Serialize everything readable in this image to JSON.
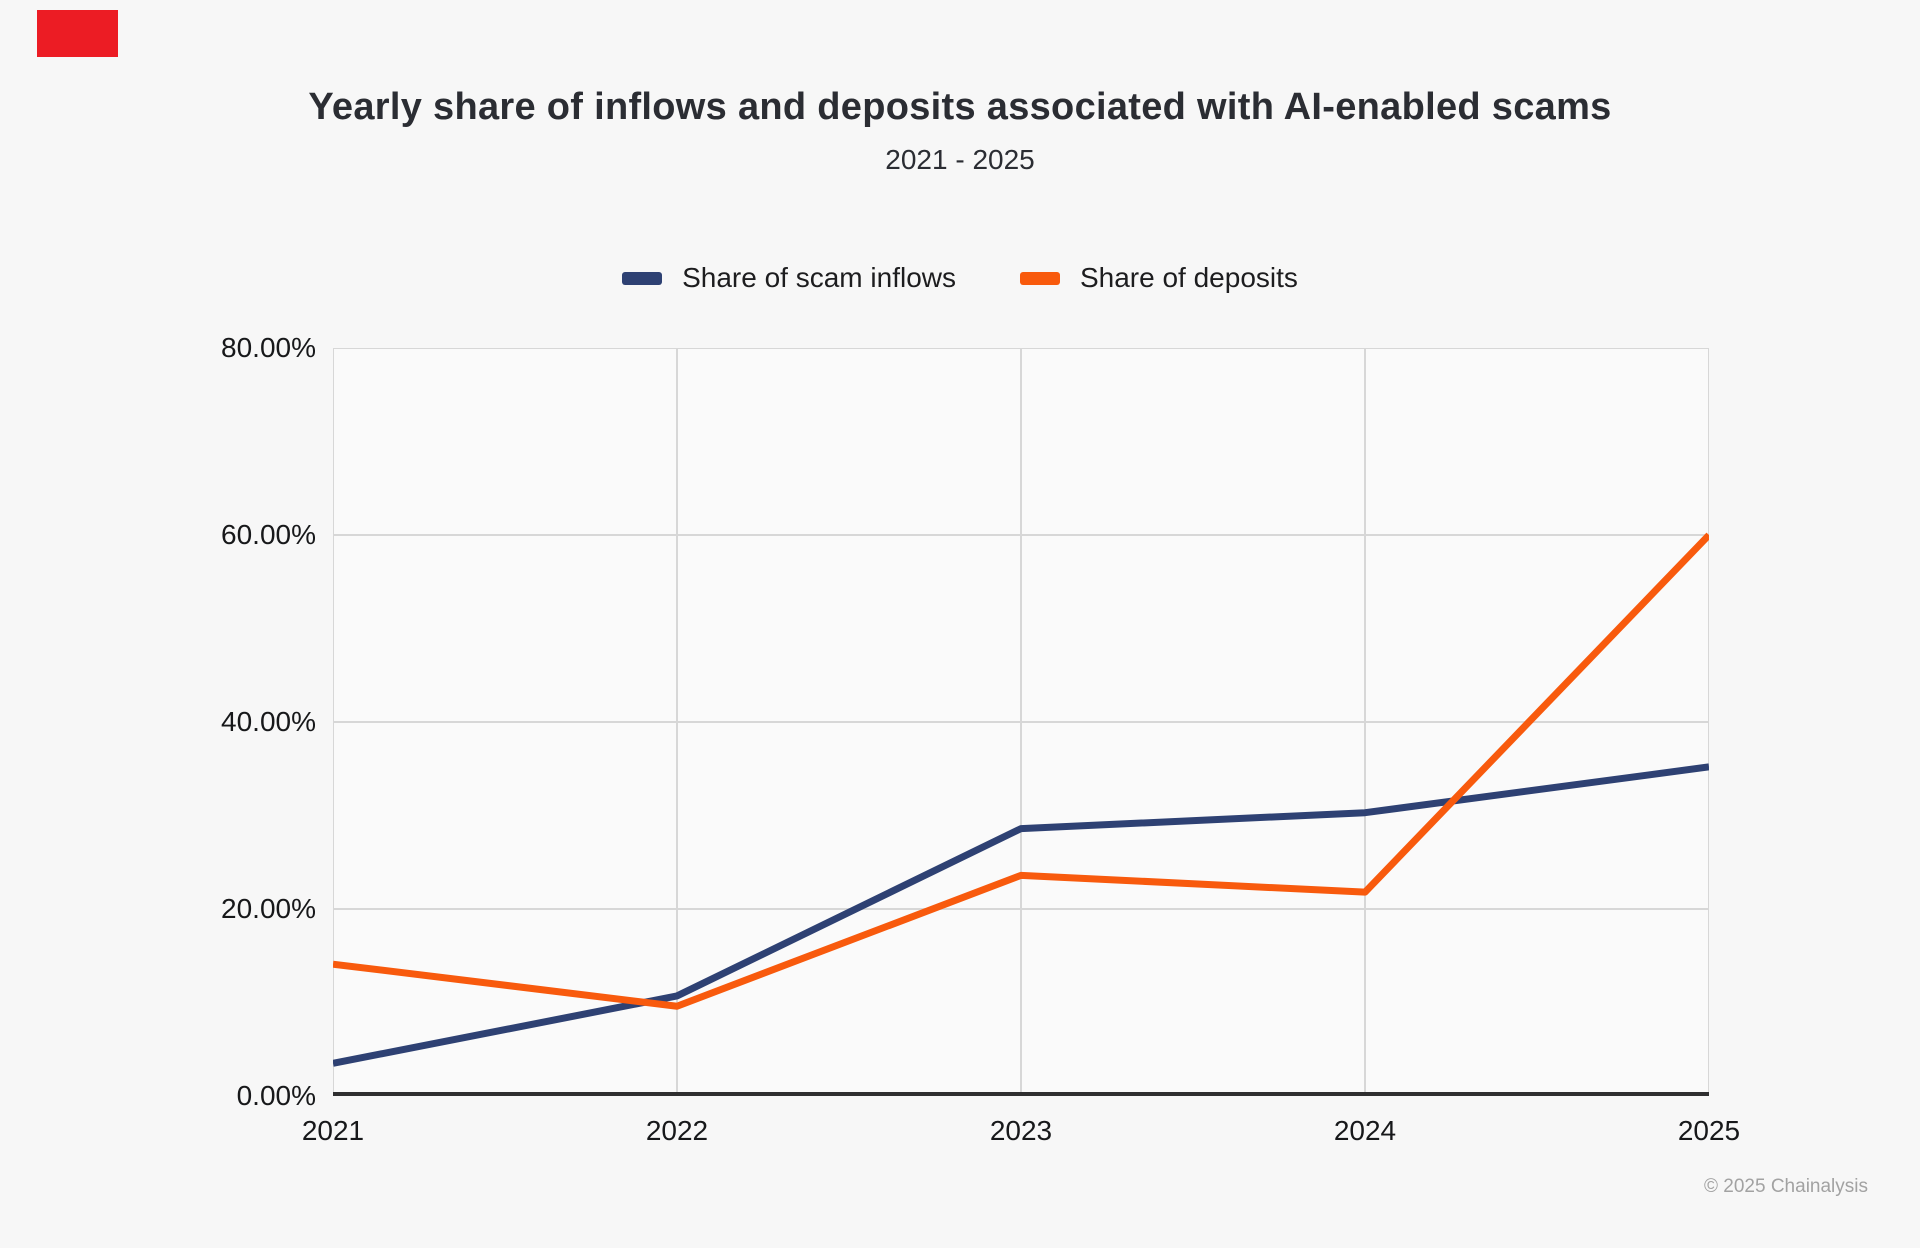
{
  "chart": {
    "title": "Yearly share of inflows and deposits associated with AI-enabled scams",
    "subtitle": "2021 - 2025"
  },
  "footer": {
    "copyright": "© 2025 Chainalysis"
  },
  "annotation": {
    "red_box_color": "#ec1c24"
  },
  "chart_data": {
    "type": "line",
    "x": [
      2021,
      2022,
      2023,
      2024,
      2025
    ],
    "x_tick_labels": [
      "2021",
      "2022",
      "2023",
      "2024",
      "2025"
    ],
    "series": [
      {
        "name": "Share of scam inflows",
        "color": "#2e4173",
        "values": [
          3.5,
          10.7,
          28.6,
          30.3,
          35.2
        ]
      },
      {
        "name": "Share of deposits",
        "color": "#f85a0d",
        "values": [
          14.1,
          9.6,
          23.6,
          21.8,
          60.0
        ]
      }
    ],
    "title": "Yearly share of inflows and deposits associated with AI-enabled scams",
    "xlabel": "",
    "ylabel": "",
    "ylim": [
      0,
      80
    ],
    "yticks": [
      {
        "value": 0,
        "label": "0.00%"
      },
      {
        "value": 20,
        "label": "20.00%"
      },
      {
        "value": 40,
        "label": "40.00%"
      },
      {
        "value": 60,
        "label": "60.00%"
      },
      {
        "value": 80,
        "label": "80.00%"
      }
    ],
    "grid": true,
    "grid_color": "#d7d7d7",
    "axis_color": "#2f2f30",
    "legend_position": "top"
  }
}
